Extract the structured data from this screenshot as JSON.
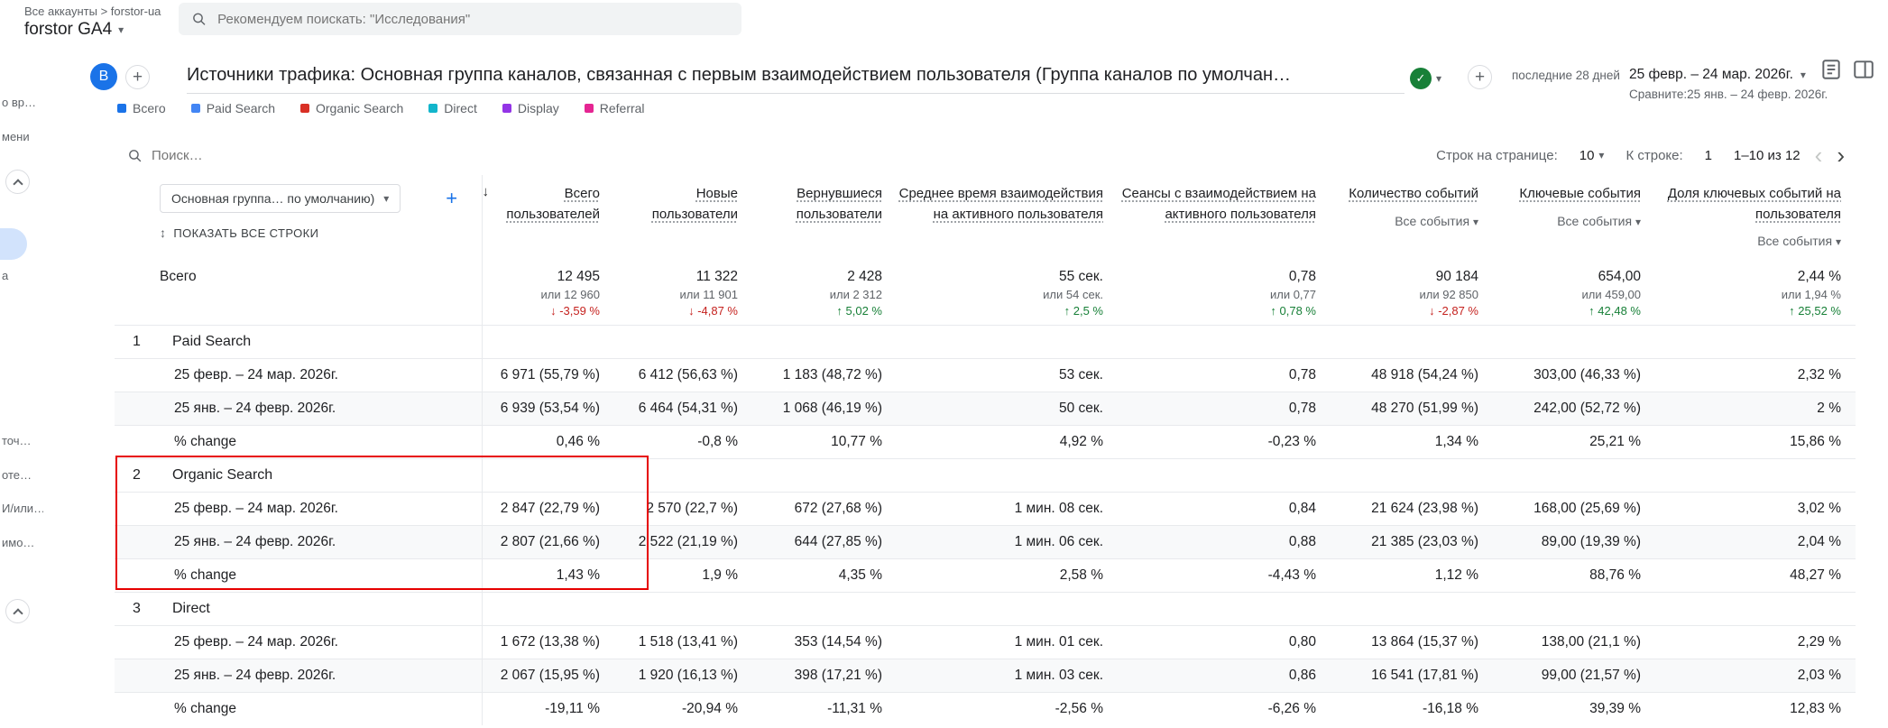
{
  "topbar": {
    "breadcrumb": "Все аккаунты > forstor-ua",
    "property_name": "forstor GA4",
    "search_placeholder": "Рекомендуем поискать: \"Исследования\""
  },
  "report_header": {
    "avatar_letter": "B",
    "title": "Источники трафика: Основная группа каналов, связанная с первым взаимодействием пользователя (Группа каналов по умолчан…",
    "date_preset": "последние 28 дней",
    "date_range": "25 февр. – 24 мар. 2026г.",
    "compare_range": "Сравните:25 янв. – 24 февр. 2026г."
  },
  "legend": {
    "items": [
      {
        "label": "Всего",
        "color": "#1a73e8"
      },
      {
        "label": "Paid Search",
        "color": "#4285f4"
      },
      {
        "label": "Organic Search",
        "color": "#d93025"
      },
      {
        "label": "Direct",
        "color": "#12b5cb"
      },
      {
        "label": "Display",
        "color": "#9334e6"
      },
      {
        "label": "Referral",
        "color": "#e52592"
      }
    ]
  },
  "left_rail": {
    "fragments": [
      "о вр…",
      "мени",
      "а",
      "точ…",
      "оте…",
      "И/или…",
      "имо…"
    ]
  },
  "toolbar": {
    "search_placeholder": "Поиск…",
    "rows_per_page_label": "Строк на странице:",
    "rows_per_page_value": "10",
    "goto_label": "К строке:",
    "goto_value": "1",
    "pagination_label": "1–10 из 12"
  },
  "table": {
    "dimension_selector": "Основная группа… по умолчанию)",
    "show_all_rows": "ПОКАЗАТЬ ВСЕ СТРОКИ",
    "columns": [
      {
        "label": "Всего пользователей",
        "sorted": true
      },
      {
        "label": "Новые пользователи"
      },
      {
        "label": "Вернувшиеся пользователи"
      },
      {
        "label": "Среднее время взаимодействия на активного пользователя"
      },
      {
        "label": "Сеансы с взаимодействием на активного пользователя"
      },
      {
        "label": "Количество событий",
        "filter": "Все события"
      },
      {
        "label": "Ключевые события",
        "filter": "Все события"
      },
      {
        "label": "Доля ключевых событий на пользователя",
        "filter": "Все события"
      }
    ],
    "totals": {
      "label": "Всего",
      "cells": [
        {
          "value": "12 495",
          "or": "или 12 960",
          "change": "-3,59 %",
          "dir": "down"
        },
        {
          "value": "11 322",
          "or": "или 11 901",
          "change": "-4,87 %",
          "dir": "down"
        },
        {
          "value": "2 428",
          "or": "или 2 312",
          "change": "5,02 %",
          "dir": "up"
        },
        {
          "value": "55 сек.",
          "or": "или 54 сек.",
          "change": "2,5 %",
          "dir": "up"
        },
        {
          "value": "0,78",
          "or": "или 0,77",
          "change": "0,78 %",
          "dir": "up"
        },
        {
          "value": "90 184",
          "or": "или 92 850",
          "change": "-2,87 %",
          "dir": "down"
        },
        {
          "value": "654,00",
          "or": "или 459,00",
          "change": "42,48 %",
          "dir": "up"
        },
        {
          "value": "2,44 %",
          "or": "или 1,94 %",
          "change": "25,52 %",
          "dir": "up"
        }
      ]
    },
    "groups": [
      {
        "num": "1",
        "name": "Paid Search",
        "rows": [
          {
            "label": "25 февр. – 24 мар. 2026г.",
            "cells": [
              "6 971 (55,79 %)",
              "6 412 (56,63 %)",
              "1 183 (48,72 %)",
              "53 сек.",
              "0,78",
              "48 918 (54,24 %)",
              "303,00 (46,33 %)",
              "2,32 %"
            ]
          },
          {
            "label": "25 янв. – 24 февр. 2026г.",
            "cells": [
              "6 939 (53,54 %)",
              "6 464 (54,31 %)",
              "1 068 (46,19 %)",
              "50 сек.",
              "0,78",
              "48 270 (51,99 %)",
              "242,00 (52,72 %)",
              "2 %"
            ]
          },
          {
            "label": "% change",
            "cells": [
              "0,46 %",
              "-0,8 %",
              "10,77 %",
              "4,92 %",
              "-0,23 %",
              "1,34 %",
              "25,21 %",
              "15,86 %"
            ]
          }
        ]
      },
      {
        "num": "2",
        "name": "Organic Search",
        "highlighted": true,
        "rows": [
          {
            "label": "25 февр. – 24 мар. 2026г.",
            "cells": [
              "2 847 (22,79 %)",
              "2 570 (22,7 %)",
              "672 (27,68 %)",
              "1 мин. 08 сек.",
              "0,84",
              "21 624 (23,98 %)",
              "168,00 (25,69 %)",
              "3,02 %"
            ]
          },
          {
            "label": "25 янв. – 24 февр. 2026г.",
            "cells": [
              "2 807 (21,66 %)",
              "2 522 (21,19 %)",
              "644 (27,85 %)",
              "1 мин. 06 сек.",
              "0,88",
              "21 385 (23,03 %)",
              "89,00 (19,39 %)",
              "2,04 %"
            ]
          },
          {
            "label": "% change",
            "cells": [
              "1,43 %",
              "1,9 %",
              "4,35 %",
              "2,58 %",
              "-4,43 %",
              "1,12 %",
              "88,76 %",
              "48,27 %"
            ]
          }
        ]
      },
      {
        "num": "3",
        "name": "Direct",
        "rows": [
          {
            "label": "25 февр. – 24 мар. 2026г.",
            "cells": [
              "1 672 (13,38 %)",
              "1 518 (13,41 %)",
              "353 (14,54 %)",
              "1 мин. 01 сек.",
              "0,80",
              "13 864 (15,37 %)",
              "138,00 (21,1 %)",
              "2,29 %"
            ]
          },
          {
            "label": "25 янв. – 24 февр. 2026г.",
            "cells": [
              "2 067 (15,95 %)",
              "1 920 (16,13 %)",
              "398 (17,21 %)",
              "1 мин. 03 сек.",
              "0,86",
              "16 541 (17,81 %)",
              "99,00 (21,57 %)",
              "2,03 %"
            ]
          },
          {
            "label": "% change",
            "cells": [
              "-19,11 %",
              "-20,94 %",
              "-11,31 %",
              "-2,56 %",
              "-6,26 %",
              "-16,18 %",
              "39,39 %",
              "12,83 %"
            ]
          }
        ]
      }
    ]
  },
  "colors": {
    "accent_blue": "#1a73e8",
    "positive_green": "#188038",
    "negative_red": "#c5221f",
    "annotation_red": "#e60000"
  }
}
